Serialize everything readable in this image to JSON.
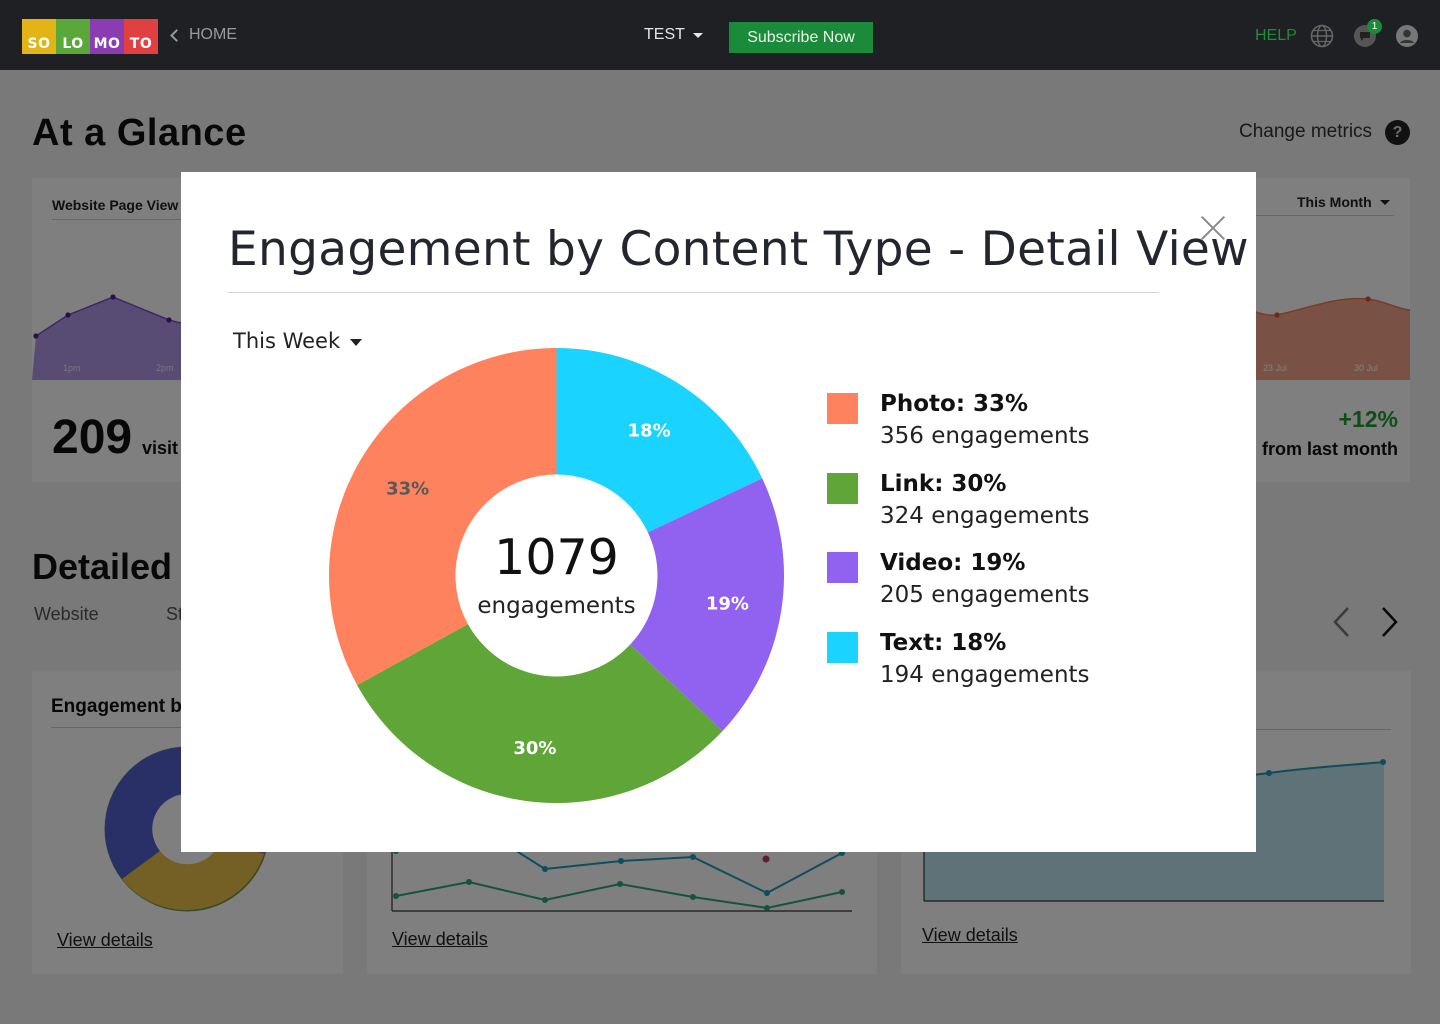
{
  "topbar": {
    "logo": [
      "SO",
      "LO",
      "MO",
      "TO"
    ],
    "logo_colors": [
      "#e3b416",
      "#5aa83a",
      "#8c3cb3",
      "#e04040"
    ],
    "home_label": "HOME",
    "account_label": "TEST",
    "subscribe_label": "Subscribe Now",
    "help_label": "HELP",
    "notifications_count": "1"
  },
  "dashboard": {
    "title": "At a Glance",
    "change_metrics_label": "Change metrics",
    "help_icon_label": "?",
    "glance_left": {
      "label": "Website Page View",
      "ticks": [
        "1pm",
        "2pm"
      ],
      "value": "209",
      "unit": "visit"
    },
    "glance_right": {
      "range": "This Month",
      "ticks": [
        "23 Jul",
        "30 Jul"
      ],
      "change": "+12%",
      "change_caption": "from last month"
    },
    "detailed_title": "Detailed",
    "tabs": [
      "Website",
      "St"
    ],
    "card_engagement_label": "Engagement b",
    "view_details": [
      "View details",
      "View details",
      "View details"
    ]
  },
  "modal": {
    "title": "Engagement by Content Type - Detail View",
    "range_label": "This Week",
    "center_value": "1079",
    "center_label": "engagements"
  },
  "chart_data": {
    "type": "pie",
    "title": "Engagement by Content Type - Detail View",
    "total": 1079,
    "series": [
      {
        "name": "Photo",
        "percent": 33,
        "engagements": 356,
        "color": "#ff825e",
        "label_color": "#595959"
      },
      {
        "name": "Link",
        "percent": 30,
        "engagements": 324,
        "color": "#5fa537",
        "label_color": "#ffffff"
      },
      {
        "name": "Video",
        "percent": 19,
        "engagements": 205,
        "color": "#9161ef",
        "label_color": "#ffffff"
      },
      {
        "name": "Text",
        "percent": 18,
        "engagements": 194,
        "color": "#1ad4ff",
        "label_color": "#ffffff"
      }
    ],
    "legend": [
      {
        "title": "Photo: 33%",
        "detail": "356 engagements"
      },
      {
        "title": "Link: 30%",
        "detail": "324 engagements"
      },
      {
        "title": "Video: 19%",
        "detail": "205 engagements"
      },
      {
        "title": "Text: 18%",
        "detail": "194 engagements"
      }
    ],
    "legend_placement": "right"
  }
}
